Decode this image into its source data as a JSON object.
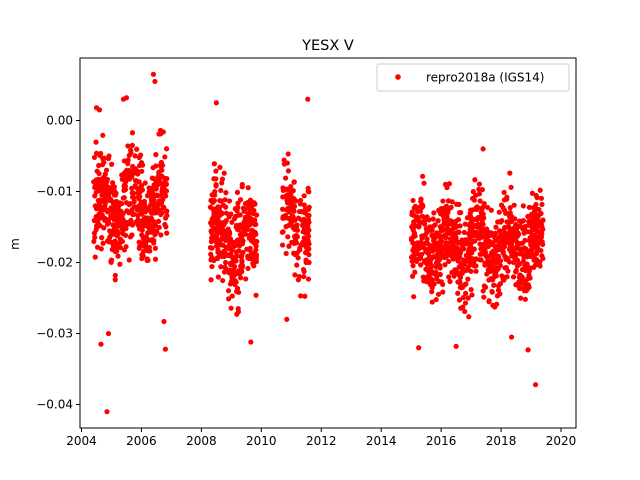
{
  "chart_data": {
    "type": "scatter",
    "title": "YESX V",
    "xlabel": "",
    "ylabel": "m",
    "xlim": [
      2003.95,
      2020.5
    ],
    "ylim": [
      -0.0433,
      0.0088
    ],
    "xticks": [
      2004,
      2006,
      2008,
      2010,
      2012,
      2014,
      2016,
      2018,
      2020
    ],
    "xtick_labels": [
      "2004",
      "2006",
      "2008",
      "2010",
      "2012",
      "2014",
      "2016",
      "2018",
      "2020"
    ],
    "yticks": [
      0.0,
      -0.01,
      -0.02,
      -0.03,
      -0.04
    ],
    "ytick_labels": [
      "0.00",
      "−0.01",
      "−0.02",
      "−0.03",
      "−0.04"
    ],
    "grid": false,
    "legend_position": "top-right",
    "series": [
      {
        "name": "repro2018a (IGS14)",
        "color": "#ff0000",
        "marker": "circle",
        "segments": [
          {
            "x_start": 2004.4,
            "x_end": 2006.85,
            "mean": -0.012,
            "spread": 0.0045,
            "count": 520
          },
          {
            "x_start": 2008.3,
            "x_end": 2009.85,
            "mean": -0.017,
            "spread": 0.0045,
            "count": 330
          },
          {
            "x_start": 2010.7,
            "x_end": 2011.6,
            "mean": -0.014,
            "spread": 0.0045,
            "count": 150
          },
          {
            "x_start": 2015.0,
            "x_end": 2019.4,
            "mean": -0.0175,
            "spread": 0.0042,
            "count": 900
          }
        ],
        "notable_points": [
          {
            "x": 2004.5,
            "y": 0.0018
          },
          {
            "x": 2004.6,
            "y": 0.0015
          },
          {
            "x": 2004.65,
            "y": -0.0315
          },
          {
            "x": 2004.85,
            "y": -0.041
          },
          {
            "x": 2004.9,
            "y": -0.03
          },
          {
            "x": 2005.4,
            "y": 0.003
          },
          {
            "x": 2005.5,
            "y": 0.0032
          },
          {
            "x": 2006.4,
            "y": 0.0065
          },
          {
            "x": 2006.45,
            "y": 0.0055
          },
          {
            "x": 2006.8,
            "y": -0.0322
          },
          {
            "x": 2006.75,
            "y": -0.0283
          },
          {
            "x": 2008.5,
            "y": 0.0025
          },
          {
            "x": 2009.65,
            "y": -0.0312
          },
          {
            "x": 2010.85,
            "y": -0.028
          },
          {
            "x": 2011.55,
            "y": 0.003
          },
          {
            "x": 2015.25,
            "y": -0.032
          },
          {
            "x": 2016.5,
            "y": -0.0318
          },
          {
            "x": 2017.4,
            "y": -0.004
          },
          {
            "x": 2018.35,
            "y": -0.0305
          },
          {
            "x": 2018.9,
            "y": -0.0323
          },
          {
            "x": 2019.15,
            "y": -0.0372
          }
        ]
      }
    ]
  }
}
